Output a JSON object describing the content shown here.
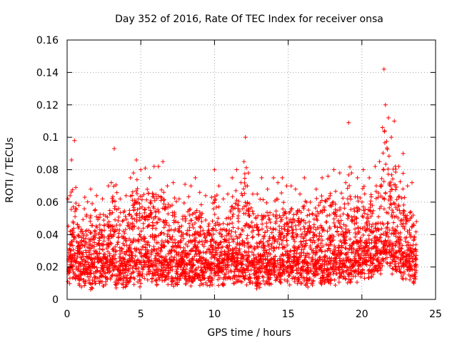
{
  "chart_data": {
    "type": "scatter",
    "title": "Day 352 of 2016, Rate Of TEC Index for receiver onsa",
    "xlabel": "GPS time / hours",
    "ylabel": "ROTI / TECUs",
    "xlim": [
      0,
      25
    ],
    "ylim": [
      0,
      0.16
    ],
    "xticks": [
      "0",
      "5",
      "10",
      "15",
      "20",
      "25"
    ],
    "yticks": [
      "0",
      "0.02",
      "0.04",
      "0.06",
      "0.08",
      "0.1",
      "0.12",
      "0.14",
      "0.16"
    ],
    "grid": true,
    "marker": "plus",
    "color": "#ff0000",
    "series": [
      {
        "x": [
          0.05,
          0.2,
          0.3,
          0.5,
          0.8,
          1.2,
          1.6,
          2.0,
          2.4,
          2.8,
          3.0,
          3.2,
          3.6,
          4.0,
          4.3,
          4.5,
          4.7,
          5.0,
          5.3,
          5.6,
          5.9,
          6.2,
          6.5,
          6.8,
          7.2,
          7.6,
          8.0,
          8.4,
          8.7,
          9.0,
          9.4,
          9.8,
          10.0,
          10.3,
          10.6,
          10.9,
          11.2,
          11.5,
          11.8,
          12.0,
          12.1,
          12.3,
          12.6,
          12.9,
          13.2,
          13.6,
          14.0,
          14.3,
          14.6,
          14.9,
          15.2,
          15.5,
          15.8,
          16.1,
          16.5,
          16.9,
          17.3,
          17.7,
          18.1,
          18.5,
          18.9,
          19.1,
          19.3,
          19.7,
          20.1,
          20.5,
          20.9,
          21.2,
          21.4,
          21.5,
          21.6,
          21.8,
          22.0,
          22.2,
          22.5,
          22.8,
          23.1,
          23.4,
          23.7
        ],
        "y": [
          0.062,
          0.064,
          0.086,
          0.098,
          0.058,
          0.063,
          0.068,
          0.064,
          0.062,
          0.07,
          0.072,
          0.093,
          0.062,
          0.064,
          0.075,
          0.078,
          0.086,
          0.08,
          0.081,
          0.075,
          0.082,
          0.082,
          0.085,
          0.07,
          0.072,
          0.062,
          0.071,
          0.07,
          0.075,
          0.066,
          0.064,
          0.063,
          0.08,
          0.07,
          0.062,
          0.065,
          0.075,
          0.08,
          0.072,
          0.085,
          0.1,
          0.078,
          0.065,
          0.065,
          0.075,
          0.068,
          0.075,
          0.072,
          0.075,
          0.07,
          0.07,
          0.068,
          0.065,
          0.075,
          0.06,
          0.068,
          0.075,
          0.076,
          0.08,
          0.078,
          0.072,
          0.109,
          0.078,
          0.075,
          0.08,
          0.075,
          0.082,
          0.085,
          0.106,
          0.142,
          0.12,
          0.112,
          0.1,
          0.11,
          0.082,
          0.09,
          0.07,
          0.072,
          0.048
        ],
        "baseline": [
          0.012,
          0.015,
          0.018,
          0.02,
          0.014,
          0.016,
          0.013,
          0.018,
          0.015,
          0.017,
          0.019,
          0.014,
          0.016,
          0.014,
          0.018,
          0.016,
          0.017,
          0.015,
          0.02,
          0.016,
          0.017,
          0.015,
          0.018,
          0.016,
          0.014,
          0.017,
          0.015,
          0.016,
          0.018,
          0.015,
          0.016,
          0.014,
          0.017,
          0.016,
          0.015,
          0.018,
          0.016,
          0.015,
          0.017,
          0.018,
          0.016,
          0.017,
          0.015,
          0.014,
          0.016,
          0.015,
          0.017,
          0.016,
          0.015,
          0.018,
          0.016,
          0.015,
          0.014,
          0.016,
          0.015,
          0.016,
          0.017,
          0.015,
          0.016,
          0.017,
          0.018,
          0.016,
          0.017,
          0.018,
          0.019,
          0.02,
          0.02,
          0.022,
          0.024,
          0.025,
          0.026,
          0.024,
          0.022,
          0.024,
          0.02,
          0.018,
          0.02,
          0.019,
          0.016
        ]
      }
    ]
  }
}
